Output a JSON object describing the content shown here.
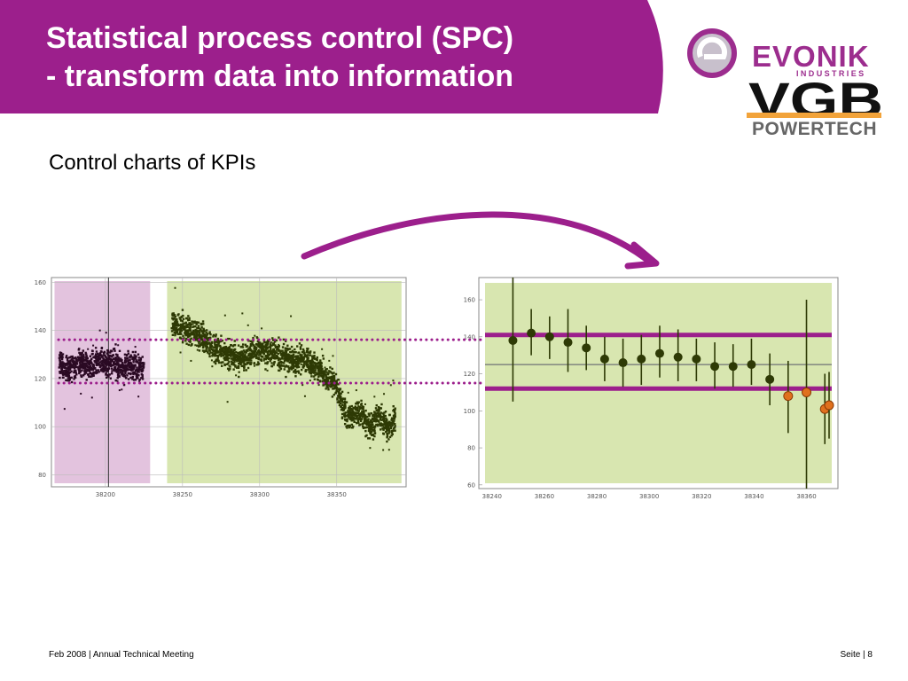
{
  "header": {
    "title_line1": "Statistical process control (SPC)",
    "title_line2": "- transform data into information",
    "subtitle": "Control charts of KPIs",
    "banner_color": "#9c1f8c"
  },
  "logos": {
    "evonik": "EVONIK",
    "evonik_sub": "INDUSTRIES",
    "vgb": "VGB",
    "powertech": "POWERTECH",
    "brand_color": "#9c2d8e",
    "vgb_accent": "#f2a33a"
  },
  "footer": {
    "left": "Feb 2008 | Annual Technical Meeting",
    "right": "Seite | 8"
  },
  "colors": {
    "phase1_bg": "#e3c3de",
    "phase2_bg": "#d8e6b0",
    "phase1_points": "#2b0a24",
    "phase2_points": "#2e3a05",
    "control_line": "#9c1f8c",
    "ok_marker": "#2e3a05",
    "out_marker": "#e0701e"
  },
  "chart_data": [
    {
      "type": "scatter",
      "title": "",
      "xlabel": "",
      "ylabel": "",
      "xlim": [
        38165,
        38395
      ],
      "ylim": [
        75,
        162
      ],
      "x_ticks": [
        "38200",
        "38250",
        "38300",
        "38350"
      ],
      "y_ticks": [
        "160",
        "140",
        "120",
        "100",
        "80"
      ],
      "grid": true,
      "series": [
        {
          "region": [
            38167,
            38229
          ],
          "x": [
            38170,
            38175,
            38180,
            38185,
            38190,
            38195,
            38200,
            38205,
            38210,
            38215,
            38220,
            38225
          ],
          "y": [
            127,
            124,
            126,
            127,
            125,
            128,
            126,
            127,
            124,
            126,
            125,
            124
          ],
          "spread": 7
        },
        {
          "region": [
            38240,
            38392
          ],
          "x": [
            38243,
            38248,
            38253,
            38258,
            38263,
            38268,
            38273,
            38278,
            38283,
            38288,
            38293,
            38298,
            38303,
            38308,
            38313,
            38318,
            38323,
            38328,
            38333,
            38338,
            38343,
            38348,
            38353,
            38358,
            38363,
            38368,
            38373,
            38378,
            38383,
            38388
          ],
          "y": [
            143,
            142,
            140,
            139,
            137,
            134,
            132,
            130,
            129,
            128,
            130,
            131,
            132,
            131,
            130,
            129,
            127,
            128,
            126,
            124,
            120,
            119,
            110,
            104,
            107,
            103,
            100,
            105,
            99,
            104
          ],
          "spread": 7
        }
      ]
    },
    {
      "type": "scatter",
      "title": "",
      "xlabel": "",
      "ylabel": "",
      "xlim": [
        38235,
        38372
      ],
      "ylim": [
        58,
        172
      ],
      "x_ticks": [
        "38240",
        "38260",
        "38280",
        "38300",
        "38320",
        "38340",
        "38360"
      ],
      "y_ticks": [
        "160",
        "140",
        "120",
        "100",
        "80",
        "60"
      ],
      "upper_control_limit": 141,
      "lower_control_limit": 112,
      "center_line": 125,
      "points": [
        {
          "x": 38248,
          "y": 138,
          "lo": 105,
          "hi": 172,
          "out": false
        },
        {
          "x": 38255,
          "y": 142,
          "lo": 130,
          "hi": 155,
          "out": false
        },
        {
          "x": 38262,
          "y": 140,
          "lo": 128,
          "hi": 151,
          "out": false
        },
        {
          "x": 38269,
          "y": 137,
          "lo": 121,
          "hi": 155,
          "out": false
        },
        {
          "x": 38276,
          "y": 134,
          "lo": 122,
          "hi": 146,
          "out": false
        },
        {
          "x": 38283,
          "y": 128,
          "lo": 116,
          "hi": 140,
          "out": false
        },
        {
          "x": 38290,
          "y": 126,
          "lo": 113,
          "hi": 139,
          "out": false
        },
        {
          "x": 38297,
          "y": 128,
          "lo": 114,
          "hi": 141,
          "out": false
        },
        {
          "x": 38304,
          "y": 131,
          "lo": 118,
          "hi": 146,
          "out": false
        },
        {
          "x": 38311,
          "y": 129,
          "lo": 116,
          "hi": 144,
          "out": false
        },
        {
          "x": 38318,
          "y": 128,
          "lo": 116,
          "hi": 139,
          "out": false
        },
        {
          "x": 38325,
          "y": 124,
          "lo": 112,
          "hi": 137,
          "out": false
        },
        {
          "x": 38332,
          "y": 124,
          "lo": 113,
          "hi": 136,
          "out": false
        },
        {
          "x": 38339,
          "y": 125,
          "lo": 114,
          "hi": 139,
          "out": false
        },
        {
          "x": 38346,
          "y": 117,
          "lo": 103,
          "hi": 131,
          "out": false
        },
        {
          "x": 38353,
          "y": 108,
          "lo": 88,
          "hi": 127,
          "out": true
        },
        {
          "x": 38360,
          "y": 110,
          "lo": 58,
          "hi": 160,
          "out": true
        },
        {
          "x": 38367,
          "y": 101,
          "lo": 82,
          "hi": 120,
          "out": true
        },
        {
          "x": 38374,
          "y": 103,
          "lo": 85,
          "hi": 121,
          "out": true
        }
      ]
    }
  ]
}
